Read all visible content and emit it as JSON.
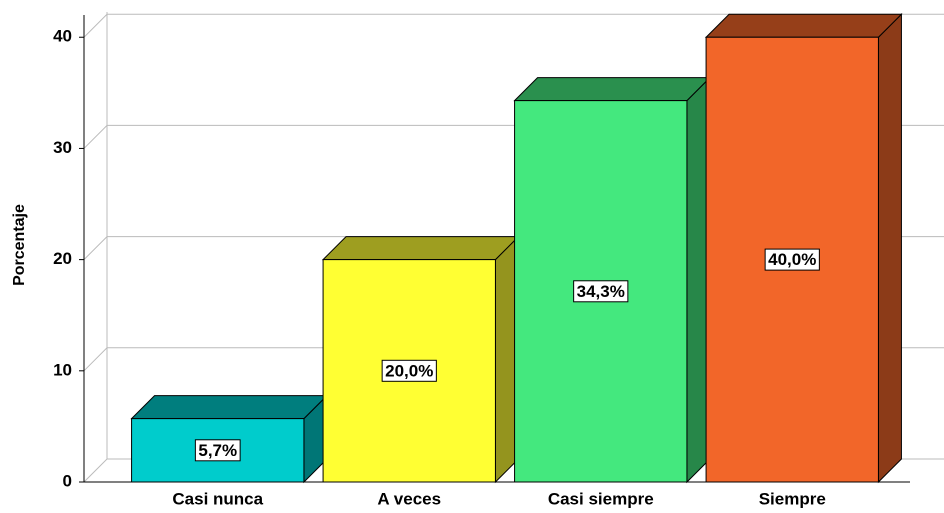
{
  "chart_data": {
    "type": "bar3d",
    "y_label": "Porcentaje",
    "categories": [
      "Casi nunca",
      "A veces",
      "Casi siempre",
      "Siempre"
    ],
    "values": [
      5.7,
      20.0,
      34.3,
      40.0
    ],
    "value_labels": [
      "5,7%",
      "20,0%",
      "34,3%",
      "40,0%"
    ],
    "colors": [
      "#00cccc",
      "#ffff33",
      "#44e87e",
      "#f26629"
    ],
    "ylim": [
      0,
      42
    ],
    "yticks": [
      0,
      10,
      20,
      30,
      40
    ],
    "grid": true
  }
}
